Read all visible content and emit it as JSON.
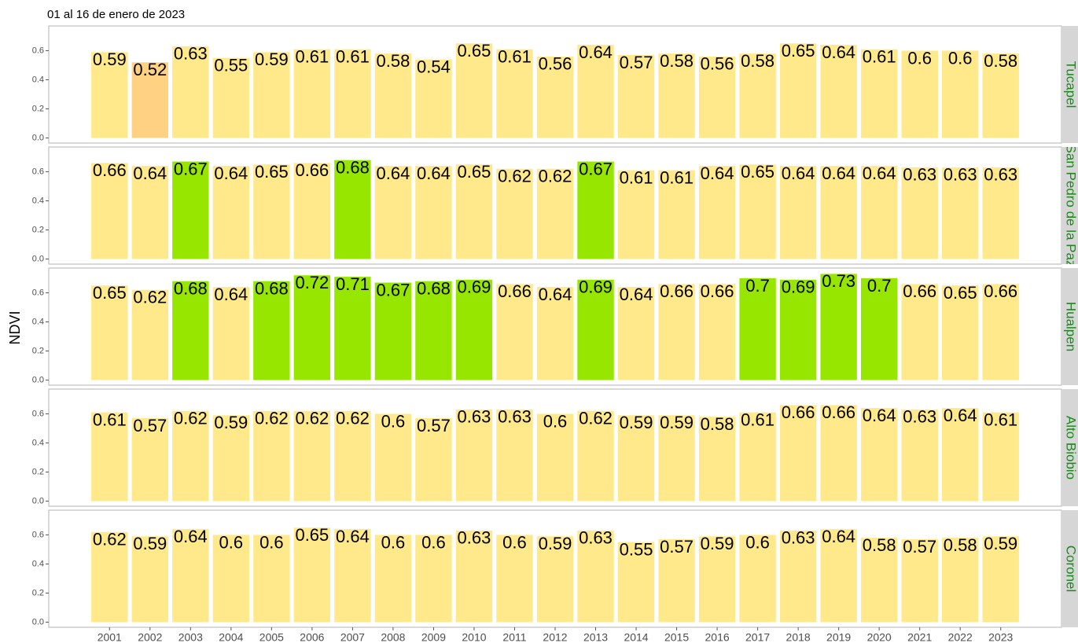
{
  "title": "01 al 16 de enero de 2023",
  "y_label": "NDVI",
  "chart_data": [
    {
      "type": "bar",
      "panel": "Tucapel",
      "values": [
        0.59,
        0.52,
        0.63,
        0.55,
        0.59,
        0.61,
        0.61,
        0.58,
        0.54,
        0.65,
        0.61,
        0.56,
        0.64,
        0.57,
        0.58,
        0.56,
        0.58,
        0.65,
        0.64,
        0.61,
        0.6,
        0.6,
        0.58
      ],
      "colors": [
        "#ffe98a",
        "#ffd182",
        "#ffe98a",
        "#ffe98a",
        "#ffe98a",
        "#ffe98a",
        "#ffe98a",
        "#ffe98a",
        "#ffe98a",
        "#ffe98a",
        "#ffe98a",
        "#ffe98a",
        "#ffe98a",
        "#ffe98a",
        "#ffe98a",
        "#ffe98a",
        "#ffe98a",
        "#ffe98a",
        "#ffe98a",
        "#ffe98a",
        "#ffe98a",
        "#ffe98a",
        "#ffe98a"
      ],
      "ylim": [
        -0.035,
        0.77
      ],
      "yticks": [
        {
          "value": 0,
          "label": "0.0"
        },
        0.2,
        0.4,
        0.6
      ]
    },
    {
      "type": "bar",
      "panel": "San Pedro de la Paz",
      "values": [
        0.66,
        0.64,
        0.67,
        0.64,
        0.65,
        0.66,
        0.68,
        0.64,
        0.64,
        0.65,
        0.62,
        0.62,
        0.67,
        0.61,
        0.61,
        0.64,
        0.65,
        0.64,
        0.64,
        0.64,
        0.63,
        0.63,
        0.63
      ],
      "colors": [
        "#ffe98a",
        "#ffe98a",
        "#96e600",
        "#ffe98a",
        "#ffe98a",
        "#ffe98a",
        "#96e600",
        "#ffe98a",
        "#ffe98a",
        "#ffe98a",
        "#ffe98a",
        "#ffe98a",
        "#96e600",
        "#ffe98a",
        "#ffe98a",
        "#ffe98a",
        "#ffe98a",
        "#ffe98a",
        "#ffe98a",
        "#ffe98a",
        "#ffe98a",
        "#ffe98a",
        "#ffe98a"
      ],
      "ylim": [
        -0.035,
        0.77
      ],
      "yticks": [
        {
          "value": 0,
          "label": "0.0"
        },
        0.2,
        0.4,
        0.6
      ]
    },
    {
      "type": "bar",
      "panel": "Hualpen",
      "values": [
        0.65,
        0.62,
        0.68,
        0.64,
        0.68,
        0.72,
        0.71,
        0.67,
        0.68,
        0.69,
        0.66,
        0.64,
        0.69,
        0.64,
        0.66,
        0.66,
        0.7,
        0.69,
        0.73,
        0.7,
        0.66,
        0.65,
        0.66
      ],
      "colors": [
        "#ffe98a",
        "#ffe98a",
        "#96e600",
        "#ffe98a",
        "#96e600",
        "#96e600",
        "#96e600",
        "#96e600",
        "#96e600",
        "#96e600",
        "#ffe98a",
        "#ffe98a",
        "#96e600",
        "#ffe98a",
        "#ffe98a",
        "#ffe98a",
        "#96e600",
        "#96e600",
        "#96e600",
        "#96e600",
        "#ffe98a",
        "#ffe98a",
        "#ffe98a"
      ],
      "ylim": [
        -0.035,
        0.77
      ],
      "yticks": [
        {
          "value": 0,
          "label": "0.0"
        },
        0.2,
        0.4,
        0.6
      ]
    },
    {
      "type": "bar",
      "panel": "Alto Biobio",
      "values": [
        0.61,
        0.57,
        0.62,
        0.59,
        0.62,
        0.62,
        0.62,
        0.6,
        0.57,
        0.63,
        0.63,
        0.6,
        0.62,
        0.59,
        0.59,
        0.58,
        0.61,
        0.66,
        0.66,
        0.64,
        0.63,
        0.64,
        0.61
      ],
      "colors": [
        "#ffe98a",
        "#ffe98a",
        "#ffe98a",
        "#ffe98a",
        "#ffe98a",
        "#ffe98a",
        "#ffe98a",
        "#ffe98a",
        "#ffe98a",
        "#ffe98a",
        "#ffe98a",
        "#ffe98a",
        "#ffe98a",
        "#ffe98a",
        "#ffe98a",
        "#ffe98a",
        "#ffe98a",
        "#ffe98a",
        "#ffe98a",
        "#ffe98a",
        "#ffe98a",
        "#ffe98a",
        "#ffe98a"
      ],
      "ylim": [
        -0.035,
        0.77
      ],
      "yticks": [
        {
          "value": 0,
          "label": "0.0"
        },
        0.2,
        0.4,
        0.6
      ]
    },
    {
      "type": "bar",
      "panel": "Coronel",
      "categories": [
        "2001",
        "2002",
        "2003",
        "2004",
        "2005",
        "2006",
        "2007",
        "2008",
        "2009",
        "2010",
        "2011",
        "2012",
        "2013",
        "2014",
        "2015",
        "2016",
        "2017",
        "2018",
        "2019",
        "2020",
        "2021",
        "2022",
        "2023"
      ],
      "values": [
        0.62,
        0.59,
        0.64,
        0.6,
        0.6,
        0.65,
        0.64,
        0.6,
        0.6,
        0.63,
        0.6,
        0.59,
        0.63,
        0.55,
        0.57,
        0.59,
        0.6,
        0.63,
        0.64,
        0.58,
        0.57,
        0.58,
        0.59
      ],
      "colors": [
        "#ffe98a",
        "#ffe98a",
        "#ffe98a",
        "#ffe98a",
        "#ffe98a",
        "#ffe98a",
        "#ffe98a",
        "#ffe98a",
        "#ffe98a",
        "#ffe98a",
        "#ffe98a",
        "#ffe98a",
        "#ffe98a",
        "#ffe98a",
        "#ffe98a",
        "#ffe98a",
        "#ffe98a",
        "#ffe98a",
        "#ffe98a",
        "#ffe98a",
        "#ffe98a",
        "#ffe98a",
        "#ffe98a"
      ],
      "ylim": [
        -0.035,
        0.77
      ],
      "yticks": [
        {
          "value": 0,
          "label": "0.0"
        },
        0.2,
        0.4,
        0.6
      ]
    }
  ]
}
